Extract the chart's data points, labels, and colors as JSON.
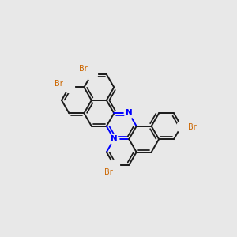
{
  "bg_color": "#e8e8e8",
  "bond_color": "#1a1a1a",
  "N_color": "#0000ff",
  "Br_color": "#cc6600",
  "bond_lw": 1.4,
  "dbo": 0.013,
  "rotation_deg": -30,
  "atoms": {
    "note": "All atom coords in mol units, bond length=1, before rotation"
  }
}
